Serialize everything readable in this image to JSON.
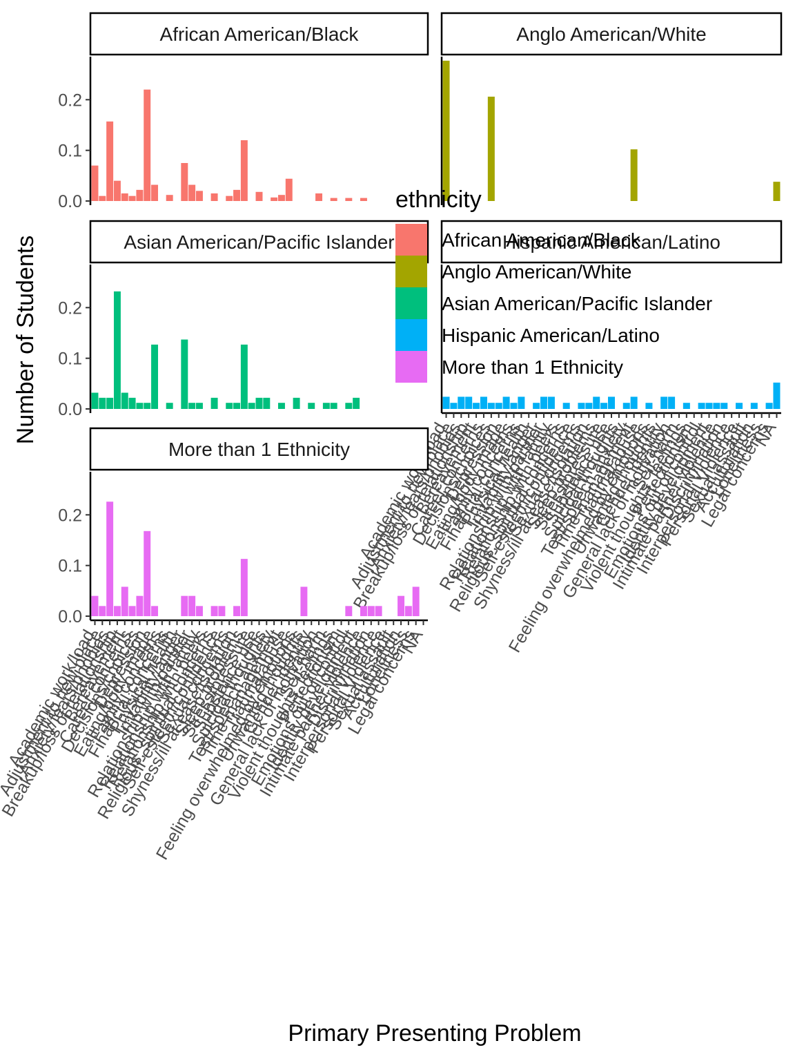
{
  "chart_data": {
    "type": "bar",
    "xlabel": "Primary Presenting Problem",
    "ylabel": "Number of Students",
    "ylim": [
      0,
      0.285
    ],
    "yticks": [
      0.0,
      0.1,
      0.2
    ],
    "ytick_labels": [
      "0.0",
      "0.1",
      "0.2"
    ],
    "grid": false,
    "facet_wrap": {
      "ncol": 2,
      "free_x": true
    },
    "legend": {
      "title": "ethnicity",
      "placement": "right",
      "entries": [
        {
          "label": "African American/Black",
          "color": "#F8766D"
        },
        {
          "label": "Anglo American/White",
          "color": "#A3A500"
        },
        {
          "label": "Asian American/Pacific Islander",
          "color": "#00BF7D"
        },
        {
          "label": "Hispanic American/Latino",
          "color": "#00B0F6"
        },
        {
          "label": "More than 1 Ethnicity",
          "color": "#E76BF3"
        }
      ]
    },
    "categories": [
      "Academic work/load",
      "Adjustment to new place",
      "Anxiety/fears/phobias",
      "Breakup/loss of relationship",
      "Bereavement",
      "Career concerns",
      "Decisions/choices",
      "Depression",
      "Eating/body image",
      "Family concerns",
      "Financial concerns",
      "Physical health",
      "Irritability/anger",
      "Relationship with partner",
      "Relationship with family",
      "Relationship with peers",
      "Religious, spiritual concerns",
      "Self-esteem/confidence",
      "Sexual concerns",
      "Shyness/ill at ease/isolation",
      "Sleep problems",
      "Stress/pressure",
      "Substance use",
      "Suicidal thoughts",
      "Test/speech anxiety",
      "Time management",
      "Trauma/abuse",
      "Feeling overwhelmed by emotions",
      "Unwanted thoughts",
      "Gender identity",
      "General lack of motivation",
      "Self-harm",
      "Violent thoughts, feelings",
      "Perfectionism",
      "Emotions out of control",
      "Identity development",
      "Intimate partner violence",
      "Discrimination",
      "Interpersonal Violence",
      "Personal Violence",
      "Sexual assault",
      "Acculturation",
      "Loneliness",
      "Legal concerns",
      "NA"
    ],
    "series": [
      {
        "name": "African American/Black",
        "color": "#F8766D",
        "values": [
          0.07,
          0.01,
          0.157,
          0.04,
          0.015,
          0.01,
          0.022,
          0.22,
          0.032,
          0,
          0.012,
          0,
          0.075,
          0.032,
          0.02,
          0,
          0.015,
          0,
          0.01,
          0.022,
          0.12,
          0,
          0.018,
          0,
          0.007,
          0.012,
          0.044,
          0,
          0,
          0,
          0.015,
          0,
          0.006,
          0,
          0.006,
          0,
          0.006,
          0,
          0,
          0,
          0,
          0,
          0,
          0,
          0
        ]
      },
      {
        "name": "Anglo American/White",
        "color": "#A3A500",
        "values": [
          0.277,
          0,
          0,
          0,
          0,
          0,
          0.206,
          0,
          0,
          0,
          0,
          0,
          0,
          0,
          0,
          0,
          0,
          0,
          0,
          0,
          0,
          0,
          0,
          0,
          0,
          0.102,
          0,
          0,
          0,
          0,
          0,
          0,
          0,
          0,
          0,
          0,
          0,
          0,
          0,
          0,
          0,
          0,
          0,
          0,
          0.038
        ]
      },
      {
        "name": "Asian American/Pacific Islander",
        "color": "#00BF7D",
        "values": [
          0.032,
          0.022,
          0.022,
          0.232,
          0.032,
          0.022,
          0.012,
          0.012,
          0.127,
          0,
          0.012,
          0,
          0.137,
          0.012,
          0.012,
          0,
          0.022,
          0,
          0.012,
          0.012,
          0.127,
          0.012,
          0.022,
          0.022,
          0,
          0.012,
          0,
          0.022,
          0,
          0.012,
          0,
          0.012,
          0.012,
          0,
          0.012,
          0.022,
          0,
          0,
          0,
          0,
          0,
          0,
          0,
          0,
          0
        ]
      },
      {
        "name": "Hispanic American/Latino",
        "color": "#00B0F6",
        "values": [
          0.024,
          0.012,
          0.024,
          0.024,
          0.012,
          0.024,
          0.012,
          0.012,
          0.024,
          0.012,
          0.024,
          0,
          0.012,
          0.024,
          0.024,
          0,
          0.012,
          0,
          0.012,
          0.012,
          0.024,
          0.012,
          0.024,
          0,
          0.012,
          0.024,
          0,
          0.012,
          0,
          0.024,
          0.024,
          0,
          0.012,
          0,
          0.012,
          0.012,
          0.012,
          0.012,
          0,
          0.012,
          0,
          0.012,
          0,
          0.012,
          0.052
        ]
      },
      {
        "name": "More than 1 Ethnicity",
        "color": "#E76BF3",
        "values": [
          0.04,
          0.02,
          0.226,
          0.02,
          0.058,
          0.02,
          0.04,
          0.168,
          0.02,
          0,
          0,
          0,
          0.04,
          0.04,
          0.02,
          0,
          0.02,
          0.02,
          0,
          0.02,
          0.113,
          0,
          0,
          0,
          0,
          0,
          0,
          0,
          0.058,
          0,
          0,
          0,
          0,
          0,
          0.02,
          0,
          0.02,
          0.02,
          0.02,
          0,
          0,
          0.04,
          0.02,
          0.058,
          0
        ]
      }
    ]
  }
}
